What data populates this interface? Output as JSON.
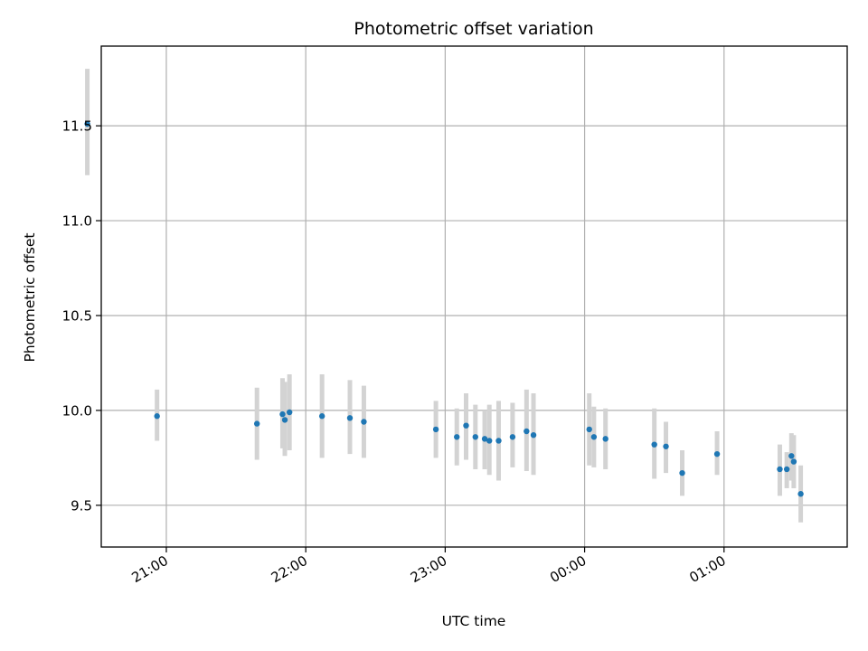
{
  "chart_data": {
    "type": "scatter",
    "title": "Photometric offset variation",
    "xlabel": "UTC time",
    "ylabel": "Photometric offset",
    "x_axis_type": "time",
    "xlim": [
      "20:32",
      "01:53"
    ],
    "ylim": [
      9.28,
      11.92
    ],
    "grid": true,
    "legend": "none",
    "colors": {
      "points": "#1f77b4",
      "errorbars": "#d3d3d3",
      "grid": "#b0b0b0"
    },
    "x_ticks": [
      {
        "value": "21:00",
        "label": "21:00"
      },
      {
        "value": "22:00",
        "label": "22:00"
      },
      {
        "value": "23:00",
        "label": "23:00"
      },
      {
        "value": "00:00",
        "label": "00:00"
      },
      {
        "value": "01:00",
        "label": "01:00"
      }
    ],
    "y_ticks": [
      {
        "value": 9.5,
        "label": "9.5"
      },
      {
        "value": 10.0,
        "label": "10.0"
      },
      {
        "value": 10.5,
        "label": "10.5"
      },
      {
        "value": 11.0,
        "label": "11.0"
      },
      {
        "value": 11.5,
        "label": "11.5"
      }
    ],
    "points": [
      {
        "time": "20:26",
        "y": 11.51,
        "err_low": 11.24,
        "err_high": 11.8
      },
      {
        "time": "20:56",
        "y": 9.97,
        "err_low": 9.84,
        "err_high": 10.11
      },
      {
        "time": "21:39",
        "y": 9.93,
        "err_low": 9.74,
        "err_high": 10.12
      },
      {
        "time": "21:50",
        "y": 9.98,
        "err_low": 9.8,
        "err_high": 10.17
      },
      {
        "time": "21:51",
        "y": 9.95,
        "err_low": 9.76,
        "err_high": 10.15
      },
      {
        "time": "21:53",
        "y": 9.99,
        "err_low": 9.79,
        "err_high": 10.19
      },
      {
        "time": "22:07",
        "y": 9.97,
        "err_low": 9.75,
        "err_high": 10.19
      },
      {
        "time": "22:19",
        "y": 9.96,
        "err_low": 9.77,
        "err_high": 10.16
      },
      {
        "time": "22:25",
        "y": 9.94,
        "err_low": 9.75,
        "err_high": 10.13
      },
      {
        "time": "22:56",
        "y": 9.9,
        "err_low": 9.75,
        "err_high": 10.05
      },
      {
        "time": "23:05",
        "y": 9.86,
        "err_low": 9.71,
        "err_high": 10.01
      },
      {
        "time": "23:09",
        "y": 9.92,
        "err_low": 9.74,
        "err_high": 10.09
      },
      {
        "time": "23:13",
        "y": 9.86,
        "err_low": 9.69,
        "err_high": 10.03
      },
      {
        "time": "23:17",
        "y": 9.85,
        "err_low": 9.69,
        "err_high": 10.0
      },
      {
        "time": "23:19",
        "y": 9.84,
        "err_low": 9.66,
        "err_high": 10.03
      },
      {
        "time": "23:23",
        "y": 9.84,
        "err_low": 9.63,
        "err_high": 10.05
      },
      {
        "time": "23:29",
        "y": 9.86,
        "err_low": 9.7,
        "err_high": 10.04
      },
      {
        "time": "23:35",
        "y": 9.89,
        "err_low": 9.68,
        "err_high": 10.11
      },
      {
        "time": "23:38",
        "y": 9.87,
        "err_low": 9.66,
        "err_high": 10.09
      },
      {
        "time": "00:02",
        "y": 9.9,
        "err_low": 9.71,
        "err_high": 10.09
      },
      {
        "time": "00:04",
        "y": 9.86,
        "err_low": 9.7,
        "err_high": 10.02
      },
      {
        "time": "00:09",
        "y": 9.85,
        "err_low": 9.69,
        "err_high": 10.01
      },
      {
        "time": "00:30",
        "y": 9.82,
        "err_low": 9.64,
        "err_high": 10.01
      },
      {
        "time": "00:35",
        "y": 9.81,
        "err_low": 9.67,
        "err_high": 9.94
      },
      {
        "time": "00:42",
        "y": 9.67,
        "err_low": 9.55,
        "err_high": 9.79
      },
      {
        "time": "00:57",
        "y": 9.77,
        "err_low": 9.66,
        "err_high": 9.89
      },
      {
        "time": "01:24",
        "y": 9.69,
        "err_low": 9.55,
        "err_high": 9.82
      },
      {
        "time": "01:27",
        "y": 9.69,
        "err_low": 9.59,
        "err_high": 9.78
      },
      {
        "time": "01:29",
        "y": 9.76,
        "err_low": 9.63,
        "err_high": 9.88
      },
      {
        "time": "01:30",
        "y": 9.73,
        "err_low": 9.59,
        "err_high": 9.87
      },
      {
        "time": "01:33",
        "y": 9.56,
        "err_low": 9.41,
        "err_high": 9.71
      }
    ]
  }
}
